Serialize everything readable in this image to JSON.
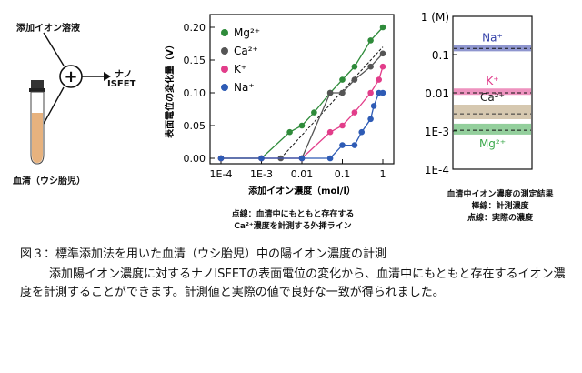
{
  "figure": {
    "left_panel": {
      "input_label": "添加イオン溶液",
      "output_label_1": "ナノ",
      "output_label_2": "ISFET",
      "serum_label": "血清（ウシ胎児）",
      "plus_symbol": "+",
      "colors": {
        "serum": "#e7b27e",
        "cap": "#333333"
      }
    },
    "middle_panel": {
      "note_line1": "点線：血清中にもともと存在する",
      "note_line2": "Ca²⁺濃度を計測する外挿ライン"
    },
    "right_panel": {
      "caption_line1": "血清中イオン濃度の測定結果",
      "caption_line2": "棒線：計測濃度",
      "caption_line3": "点線：実際の濃度",
      "tick_labels": [
        "1 (M)",
        "0.1",
        "0.01",
        "1E-3",
        "1E-4"
      ],
      "bands": [
        {
          "label": "Na⁺",
          "measured_exp": -0.83,
          "actual_exp": -0.84,
          "color": "#3340a8"
        },
        {
          "label": "K⁺",
          "measured_exp": -1.97,
          "actual_exp": -2.0,
          "color": "#e03a8a"
        },
        {
          "label": "Ca²⁺",
          "measured_exp": -2.5,
          "actual_exp": -2.55,
          "color": "#b59a70"
        },
        {
          "label": "Mg²⁺",
          "measured_exp": -2.95,
          "actual_exp": -2.98,
          "color": "#3aa84a"
        }
      ]
    }
  },
  "chart_data": {
    "type": "scatter",
    "ylabel": "表面電位の変化量（V）",
    "xlabel": "添加イオン濃度（mol/l）",
    "x_scale": "log",
    "xlim": [
      0.0001,
      1
    ],
    "ylim": [
      0,
      0.2
    ],
    "x_tick_labels": [
      "1E-4",
      "1E-3",
      "0.01",
      "0.1",
      "1"
    ],
    "y_tick_labels": [
      "0.00",
      "0.05",
      "0.10",
      "0.15",
      "0.20"
    ],
    "legend_position": "top-left",
    "series": [
      {
        "name": "Mg²⁺",
        "color": "#2e8b3a",
        "points": [
          [
            0.0001,
            0.0
          ],
          [
            0.001,
            0.0
          ],
          [
            0.005,
            0.04
          ],
          [
            0.01,
            0.05
          ],
          [
            0.02,
            0.07
          ],
          [
            0.05,
            0.1
          ],
          [
            0.1,
            0.12
          ],
          [
            0.2,
            0.14
          ],
          [
            0.5,
            0.18
          ],
          [
            1.0,
            0.2
          ]
        ]
      },
      {
        "name": "Ca²⁺",
        "color": "#555555",
        "points": [
          [
            0.0001,
            0.0
          ],
          [
            0.001,
            0.0
          ],
          [
            0.003,
            0.0
          ],
          [
            0.01,
            0.0
          ],
          [
            0.05,
            0.1
          ],
          [
            0.1,
            0.1
          ],
          [
            0.2,
            0.12
          ],
          [
            0.5,
            0.14
          ],
          [
            1.0,
            0.16
          ]
        ]
      },
      {
        "name": "K⁺",
        "color": "#e23d8a",
        "points": [
          [
            0.0001,
            0.0
          ],
          [
            0.001,
            0.0
          ],
          [
            0.01,
            0.0
          ],
          [
            0.05,
            0.04
          ],
          [
            0.1,
            0.05
          ],
          [
            0.2,
            0.07
          ],
          [
            0.5,
            0.1
          ],
          [
            0.8,
            0.12
          ],
          [
            1.0,
            0.14
          ]
        ]
      },
      {
        "name": "Na⁺",
        "color": "#2e5bb5",
        "points": [
          [
            0.0001,
            0.0
          ],
          [
            0.001,
            0.0
          ],
          [
            0.01,
            0.0
          ],
          [
            0.05,
            0.0
          ],
          [
            0.1,
            0.02
          ],
          [
            0.2,
            0.02
          ],
          [
            0.3,
            0.04
          ],
          [
            0.5,
            0.06
          ],
          [
            0.6,
            0.08
          ],
          [
            0.8,
            0.1
          ],
          [
            1.0,
            0.1
          ]
        ]
      }
    ],
    "extrapolation_line": {
      "from": [
        0.003,
        0.0
      ],
      "to": [
        1.0,
        0.17
      ]
    }
  },
  "caption": {
    "line1": "図３：標準添加法を用いた血清（ウシ胎児）中の陽イオン濃度の計測",
    "body": "添加陽イオン濃度に対するナノISFETの表面電位の変化から、血清中にもともと存在するイオン濃度を計測することができます。計測値と実際の値で良好な一致が得られました。"
  }
}
